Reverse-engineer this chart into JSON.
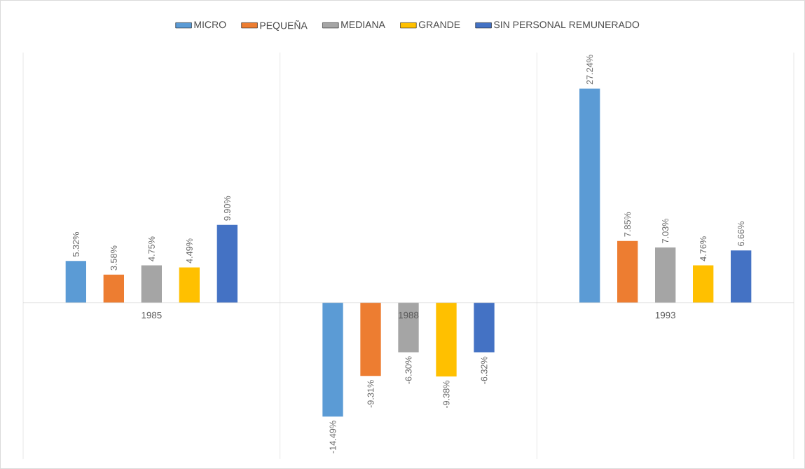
{
  "chart_data": {
    "type": "bar",
    "categories": [
      "1985",
      "1988",
      "1993"
    ],
    "series": [
      {
        "name": "MICRO",
        "color": "#5b9bd5",
        "values": [
          5.32,
          -14.49,
          27.24
        ],
        "value_labels": [
          "5.32%",
          "-14.49%",
          "27.24%"
        ]
      },
      {
        "name": "PEQUEÑA",
        "color": "#ed7d31",
        "values": [
          3.58,
          -9.31,
          7.85
        ],
        "value_labels": [
          "3.58%",
          "-9.31%",
          "7.85%"
        ]
      },
      {
        "name": "MEDIANA",
        "color": "#a5a5a5",
        "values": [
          4.75,
          -6.3,
          7.03
        ],
        "value_labels": [
          "4.75%",
          "-6.30%",
          "7.03%"
        ]
      },
      {
        "name": "GRANDE",
        "color": "#ffc000",
        "values": [
          4.49,
          -9.38,
          4.76
        ],
        "value_labels": [
          "4.49%",
          "-9.38%",
          "4.76%"
        ]
      },
      {
        "name": "SIN PERSONAL REMUNERADO",
        "color": "#4472c4",
        "values": [
          9.9,
          -6.32,
          6.66
        ],
        "value_labels": [
          "9.90%",
          "-6.32%",
          "6.66%"
        ]
      }
    ],
    "grid": "x",
    "legend": "top"
  }
}
